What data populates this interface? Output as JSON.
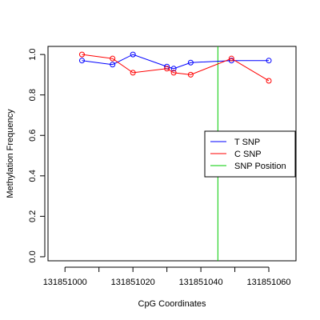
{
  "chart_data": {
    "type": "line",
    "xlabel": "CpG Coordinates",
    "ylabel": "Methylation Frequency",
    "xlim": [
      131850995,
      131851068
    ],
    "ylim": [
      -0.02,
      1.04
    ],
    "x_ticks": [
      131851000,
      131851020,
      131851040,
      131851060
    ],
    "x_minor_ticks": [
      131851010,
      131851030,
      131851050
    ],
    "y_ticks": [
      0.0,
      0.2,
      0.4,
      0.6,
      0.8,
      1.0
    ],
    "y_tick_labels": [
      "0.0",
      "0.2",
      "0.4",
      "0.6",
      "0.8",
      "1.0"
    ],
    "grid": false,
    "legend_position": "right",
    "series": [
      {
        "name": "T SNP",
        "color": "#0000ff",
        "x": [
          131851005,
          131851014,
          131851020,
          131851030,
          131851032,
          131851037,
          131851049,
          131851060
        ],
        "y": [
          0.97,
          0.95,
          1.0,
          0.94,
          0.93,
          0.96,
          0.97,
          0.97
        ]
      },
      {
        "name": "C SNP",
        "color": "#ff0000",
        "x": [
          131851005,
          131851014,
          131851020,
          131851030,
          131851032,
          131851037,
          131851049,
          131851060
        ],
        "y": [
          1.0,
          0.98,
          0.91,
          0.93,
          0.91,
          0.9,
          0.98,
          0.87
        ]
      }
    ],
    "vline": {
      "name": "SNP Position",
      "x": 131851045,
      "color": "#00cc00"
    }
  }
}
